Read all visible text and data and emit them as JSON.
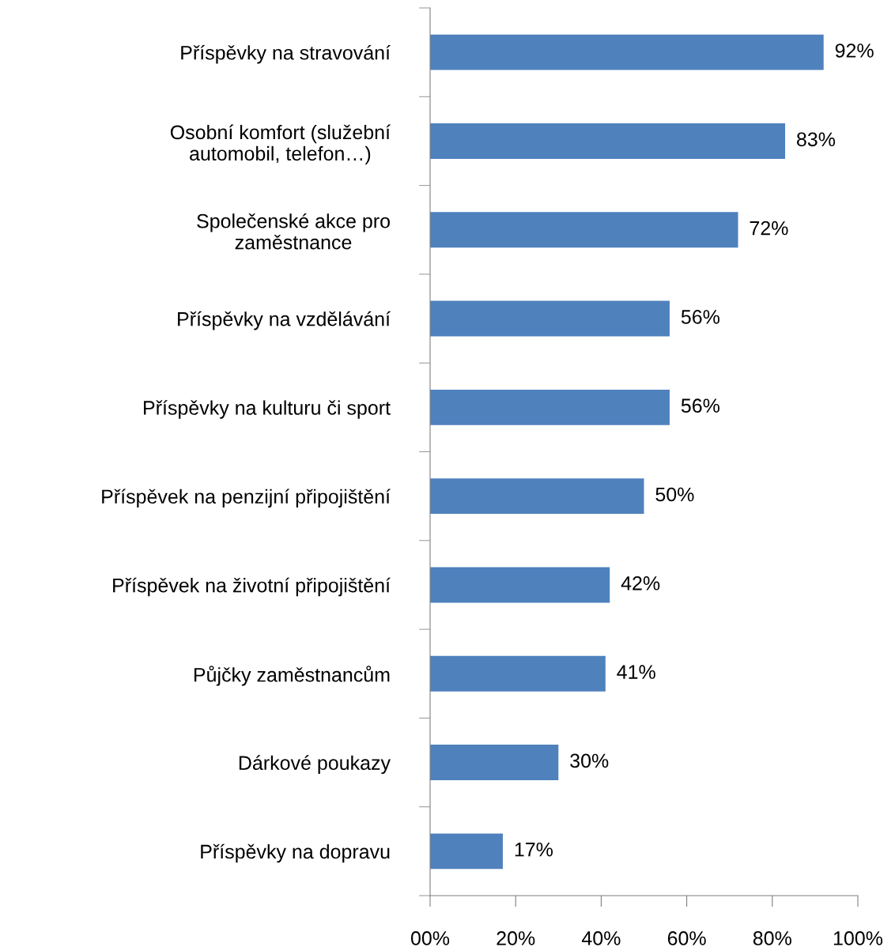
{
  "chart_data": {
    "type": "bar",
    "orientation": "horizontal",
    "categories": [
      "Příspěvky na stravování",
      "Osobní komfort (služební\nautomobil, telefon…)",
      "Společenské akce pro\nzaměstnance",
      "Příspěvky na vzdělávání",
      "Příspěvky na kulturu či sport",
      "Příspěvek na penzijní připojištění",
      "Příspěvek na životní připojištění",
      "Půjčky zaměstnancům",
      "Dárkové poukazy",
      "Příspěvky na dopravu"
    ],
    "values": [
      92,
      83,
      72,
      56,
      56,
      50,
      42,
      41,
      30,
      17
    ],
    "value_labels": [
      "92%",
      "83%",
      "72%",
      "56%",
      "56%",
      "50%",
      "42%",
      "41%",
      "30%",
      "17%"
    ],
    "color": "#4f81bd",
    "xlim": [
      0,
      100
    ],
    "xticks": [
      {
        "value": 0,
        "label": "00%"
      },
      {
        "value": 20,
        "label": "20%"
      },
      {
        "value": 40,
        "label": "40%"
      },
      {
        "value": 60,
        "label": "60%"
      },
      {
        "value": 80,
        "label": "80%"
      },
      {
        "value": 100,
        "label": "100%"
      }
    ],
    "grid": false,
    "legend": false
  }
}
